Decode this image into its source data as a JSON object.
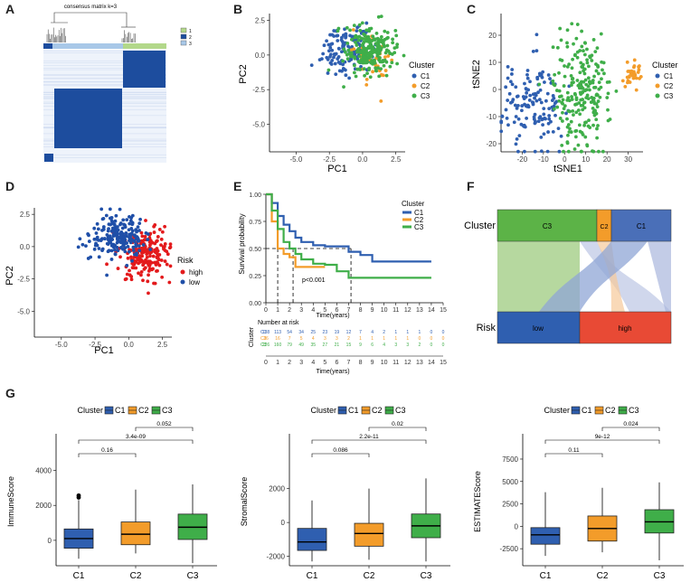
{
  "colors": {
    "C1": "#2f5fb0",
    "C2": "#f39c2a",
    "C3": "#3fae49",
    "high": "#e31a1c",
    "low": "#1f4fa8",
    "heat_dark": "#1d4d9e",
    "heat_light": "#eef3fb",
    "sankey_low": "#2f5fb0",
    "sankey_high": "#e84a35",
    "sankey_c3": "#5cb347",
    "sankey_c2": "#f39c2a",
    "sankey_c1": "#4a6fb8"
  },
  "panels": {
    "A": {
      "label": "A",
      "title": "consensus matrix k=3",
      "legend": [
        "1",
        "2",
        "3"
      ]
    },
    "B": {
      "label": "B",
      "xlabel": "PC1",
      "ylabel": "PC2",
      "xticks": [
        "-5.0",
        "-2.5",
        "0.0",
        "2.5"
      ],
      "yticks": [
        "2.5",
        "0.0",
        "-2.5",
        "-5.0"
      ],
      "legend_title": "Cluster",
      "legend": [
        "C1",
        "C2",
        "C3"
      ]
    },
    "C": {
      "label": "C",
      "xlabel": "tSNE1",
      "ylabel": "tSNE2",
      "xticks": [
        "-20",
        "-10",
        "0",
        "10",
        "20",
        "30"
      ],
      "yticks": [
        "20",
        "10",
        "0",
        "-10",
        "-20"
      ],
      "legend_title": "Cluster",
      "legend": [
        "C1",
        "C2",
        "C3"
      ]
    },
    "D": {
      "label": "D",
      "xlabel": "PC1",
      "ylabel": "PC2",
      "xticks": [
        "-5.0",
        "-2.5",
        "0.0",
        "2.5"
      ],
      "yticks": [
        "2.5",
        "0.0",
        "-2.5",
        "-5.0"
      ],
      "legend_title": "Risk",
      "legend": [
        "high",
        "low"
      ]
    },
    "E": {
      "label": "E",
      "ylabel": "Survival probability",
      "xlabel": "Time(years)",
      "yticks": [
        "1.00",
        "0.75",
        "0.50",
        "0.25",
        "0.00"
      ],
      "xticks": [
        "0",
        "1",
        "2",
        "3",
        "4",
        "5",
        "6",
        "7",
        "8",
        "9",
        "10",
        "11",
        "12",
        "13",
        "14",
        "15"
      ],
      "pvalue": "p<0.001",
      "legend_title": "Cluster",
      "legend": [
        "C1",
        "C2",
        "C3"
      ],
      "risk_title": "Number at risk",
      "risk_axis": "Cluster",
      "risk_xlabel": "Time(years)",
      "risk_rows": [
        {
          "name": "C1",
          "values": [
            "138",
            "113",
            "54",
            "34",
            "25",
            "23",
            "19",
            "12",
            "7",
            "4",
            "2",
            "1",
            "1",
            "1",
            "0",
            "0"
          ]
        },
        {
          "name": "C2",
          "values": [
            "36",
            "16",
            "7",
            "5",
            "4",
            "3",
            "3",
            "2",
            "1",
            "1",
            "1",
            "1",
            "1",
            "0",
            "0",
            "0"
          ]
        },
        {
          "name": "C3",
          "values": [
            "226",
            "160",
            "79",
            "49",
            "35",
            "27",
            "21",
            "15",
            "9",
            "6",
            "4",
            "3",
            "3",
            "2",
            "0",
            "0"
          ]
        }
      ]
    },
    "F": {
      "label": "F",
      "axis_top": "Cluster",
      "axis_bottom": "Risk",
      "top_blocks": [
        "C3",
        "C2",
        "C1"
      ],
      "bottom_blocks": [
        "low",
        "high"
      ]
    },
    "G": {
      "label": "G"
    }
  },
  "chart_data": [
    {
      "type": "scatter",
      "panel": "B",
      "title": "",
      "xlabel": "PC1",
      "ylabel": "PC2",
      "xlim": [
        -7,
        3.2
      ],
      "ylim": [
        -7,
        3
      ],
      "series": [
        {
          "name": "C1",
          "center": [
            -1.2,
            0.4
          ],
          "spread": [
            1.0,
            0.9
          ],
          "n": 138
        },
        {
          "name": "C2",
          "center": [
            1.0,
            -0.2
          ],
          "spread": [
            0.8,
            0.9
          ],
          "n": 36
        },
        {
          "name": "C3",
          "center": [
            0.5,
            0.3
          ],
          "spread": [
            0.9,
            0.9
          ],
          "n": 226
        }
      ]
    },
    {
      "type": "scatter",
      "panel": "C",
      "title": "",
      "xlabel": "tSNE1",
      "ylabel": "tSNE2",
      "xlim": [
        -30,
        37
      ],
      "ylim": [
        -23,
        28
      ],
      "series": [
        {
          "name": "C1",
          "center": [
            -15,
            -5
          ],
          "spread": [
            7,
            8
          ],
          "n": 138
        },
        {
          "name": "C2",
          "center": [
            32,
            5
          ],
          "spread": [
            2,
            2.5
          ],
          "n": 36
        },
        {
          "name": "C3",
          "center": [
            8,
            -2
          ],
          "spread": [
            7,
            11
          ],
          "n": 226
        }
      ]
    },
    {
      "type": "scatter",
      "panel": "D",
      "title": "",
      "xlabel": "PC1",
      "ylabel": "PC2",
      "xlim": [
        -7,
        3.2
      ],
      "ylim": [
        -7,
        3
      ],
      "series": [
        {
          "name": "high",
          "center": [
            1.2,
            -0.6
          ],
          "spread": [
            0.9,
            1.0
          ],
          "n": 200
        },
        {
          "name": "low",
          "center": [
            -0.8,
            0.8
          ],
          "spread": [
            1.0,
            0.8
          ],
          "n": 200
        }
      ]
    },
    {
      "type": "line",
      "panel": "E",
      "title": "",
      "xlabel": "Time(years)",
      "ylabel": "Survival probability",
      "xlim": [
        0,
        15
      ],
      "ylim": [
        0,
        1
      ],
      "series": [
        {
          "name": "C1",
          "x": [
            0,
            0.5,
            1,
            1.5,
            2,
            2.5,
            3,
            4,
            5,
            6,
            7,
            8,
            9,
            10,
            11,
            12,
            13,
            14
          ],
          "y": [
            1.0,
            0.92,
            0.8,
            0.72,
            0.66,
            0.6,
            0.56,
            0.53,
            0.52,
            0.52,
            0.47,
            0.44,
            0.38,
            0.38,
            0.38,
            0.38,
            0.38,
            0.38
          ]
        },
        {
          "name": "C2",
          "x": [
            0,
            0.5,
            1,
            1.5,
            2,
            2.5,
            3,
            4,
            5
          ],
          "y": [
            1.0,
            0.75,
            0.5,
            0.45,
            0.42,
            0.33,
            0.33,
            0.33,
            0.33
          ]
        },
        {
          "name": "C3",
          "x": [
            0,
            0.5,
            1,
            1.5,
            2,
            2.5,
            3,
            4,
            5,
            6,
            7,
            8,
            9,
            10,
            11,
            12,
            13,
            14
          ],
          "y": [
            1.0,
            0.85,
            0.68,
            0.56,
            0.5,
            0.45,
            0.4,
            0.36,
            0.35,
            0.29,
            0.23,
            0.23,
            0.23,
            0.23,
            0.23,
            0.23,
            0.23,
            0.23
          ]
        }
      ],
      "median_lines_x": [
        1.0,
        2.3,
        7.2
      ]
    },
    {
      "type": "box",
      "panel": "G1",
      "title": "",
      "xlabel": "",
      "ylabel": "ImmuneScore",
      "legend_title": "Cluster",
      "categories": [
        "C1",
        "C2",
        "C3"
      ],
      "yticks": [
        0,
        2000,
        4000
      ],
      "ylim": [
        -1400,
        4800
      ],
      "boxes": [
        {
          "min": -1050,
          "q1": -450,
          "median": 100,
          "q3": 650,
          "max": 2300,
          "outliers": [
            2450,
            2560
          ]
        },
        {
          "min": -750,
          "q1": -250,
          "median": 350,
          "q3": 1050,
          "max": 2900,
          "outliers": []
        },
        {
          "min": -1300,
          "q1": 50,
          "median": 750,
          "q3": 1500,
          "max": 3200,
          "outliers": []
        }
      ],
      "comparisons": [
        {
          "from": 0,
          "to": 1,
          "label": "0.16"
        },
        {
          "from": 0,
          "to": 2,
          "label": "3.4e-09"
        },
        {
          "from": 1,
          "to": 2,
          "label": "0.052"
        }
      ]
    },
    {
      "type": "box",
      "panel": "G2",
      "title": "",
      "xlabel": "",
      "ylabel": "StromalScore",
      "legend_title": "Cluster",
      "categories": [
        "C1",
        "C2",
        "C3"
      ],
      "yticks": [
        -2000,
        0,
        2000
      ],
      "ylim": [
        -2500,
        3900
      ],
      "boxes": [
        {
          "min": -2300,
          "q1": -1650,
          "median": -1150,
          "q3": -350,
          "max": 1300,
          "outliers": []
        },
        {
          "min": -2200,
          "q1": -1400,
          "median": -650,
          "q3": -50,
          "max": 2000,
          "outliers": []
        },
        {
          "min": -2300,
          "q1": -900,
          "median": -200,
          "q3": 500,
          "max": 2600,
          "outliers": []
        }
      ],
      "comparisons": [
        {
          "from": 0,
          "to": 1,
          "label": "0.086"
        },
        {
          "from": 0,
          "to": 2,
          "label": "2.2e-11"
        },
        {
          "from": 1,
          "to": 2,
          "label": "0.02"
        }
      ]
    },
    {
      "type": "box",
      "panel": "G3",
      "title": "",
      "xlabel": "",
      "ylabel": "ESTIMATEScore",
      "legend_title": "Cluster",
      "categories": [
        "C1",
        "C2",
        "C3"
      ],
      "yticks": [
        -2500,
        0,
        2500,
        5000,
        7500
      ],
      "ylim": [
        -4300,
        7800
      ],
      "boxes": [
        {
          "min": -3300,
          "q1": -2000,
          "median": -950,
          "q3": -150,
          "max": 3800,
          "outliers": []
        },
        {
          "min": -2900,
          "q1": -1650,
          "median": -250,
          "q3": 1150,
          "max": 4300,
          "outliers": []
        },
        {
          "min": -3800,
          "q1": -750,
          "median": 500,
          "q3": 1850,
          "max": 4900,
          "outliers": []
        }
      ],
      "comparisons": [
        {
          "from": 0,
          "to": 1,
          "label": "0.11"
        },
        {
          "from": 0,
          "to": 2,
          "label": "9e-12"
        },
        {
          "from": 1,
          "to": 2,
          "label": "0.024"
        }
      ]
    }
  ]
}
